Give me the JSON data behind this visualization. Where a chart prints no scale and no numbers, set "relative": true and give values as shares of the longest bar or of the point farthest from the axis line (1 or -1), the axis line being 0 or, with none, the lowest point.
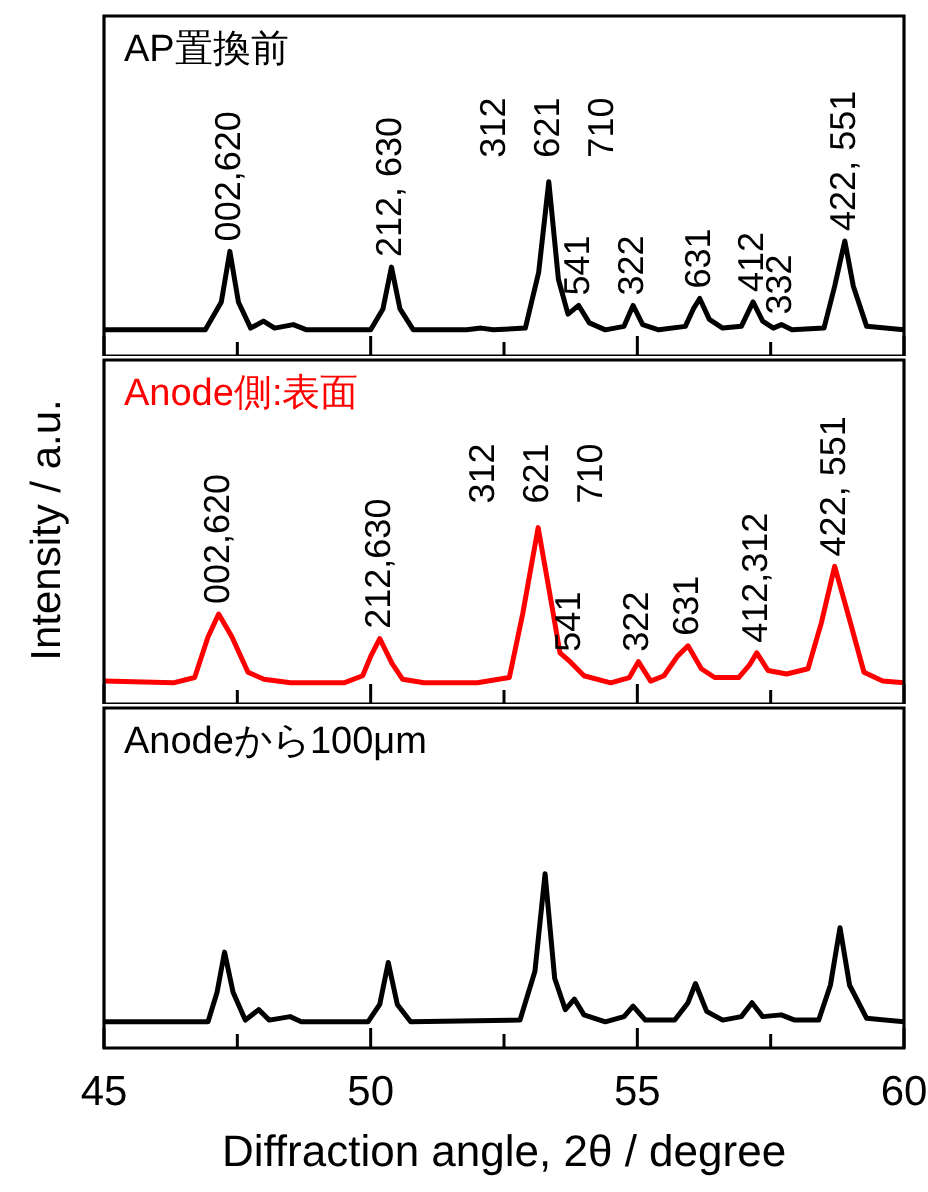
{
  "chart_data": [
    {
      "type": "line",
      "title": "AP置換前",
      "relative": true,
      "xlim": [
        45,
        60
      ],
      "xticks": [
        45,
        {
          "value": 47.5,
          "label": null
        },
        50,
        {
          "value": 52.5,
          "label": null
        },
        55,
        {
          "value": 57.5,
          "label": null
        },
        60
      ],
      "tick_labels": false,
      "legend": false,
      "series": [
        {
          "color": "#000000",
          "x": [
            45,
            46.9,
            47.2,
            47.36,
            47.52,
            47.75,
            47.99,
            48.2,
            48.55,
            48.8,
            50.0,
            50.23,
            50.39,
            50.55,
            50.8,
            51.8,
            52.07,
            52.3,
            52.9,
            53.15,
            53.34,
            53.52,
            53.7,
            53.9,
            54.1,
            54.4,
            54.75,
            54.92,
            55.1,
            55.4,
            55.9,
            56.05,
            56.17,
            56.35,
            56.6,
            56.95,
            57.17,
            57.35,
            57.55,
            57.7,
            57.9,
            58.5,
            58.7,
            58.89,
            59.05,
            59.3,
            60
          ],
          "values": [
            0.15,
            0.15,
            0.31,
            0.6,
            0.31,
            0.16,
            0.2,
            0.16,
            0.18,
            0.15,
            0.15,
            0.27,
            0.51,
            0.27,
            0.15,
            0.15,
            0.16,
            0.15,
            0.16,
            0.48,
            1,
            0.44,
            0.24,
            0.29,
            0.19,
            0.15,
            0.17,
            0.29,
            0.18,
            0.15,
            0.17,
            0.27,
            0.33,
            0.21,
            0.16,
            0.17,
            0.31,
            0.2,
            0.16,
            0.18,
            0.15,
            0.16,
            0.4,
            0.66,
            0.4,
            0.17,
            0.15
          ]
        }
      ],
      "annotations": [
        {
          "text": "002,620",
          "x": 47.36,
          "y": 0.6
        },
        {
          "text": "212, 630",
          "x": 50.39,
          "y": 0.51
        },
        {
          "text": "312",
          "x": 53.34,
          "y": 1
        },
        {
          "text": "621",
          "x": 53.34,
          "y": 1
        },
        {
          "text": "710",
          "x": 53.34,
          "y": 1
        },
        {
          "text": "541",
          "x": 53.9,
          "y": 0.29
        },
        {
          "text": "322",
          "x": 54.92,
          "y": 0.29
        },
        {
          "text": "631",
          "x": 56.17,
          "y": 0.33
        },
        {
          "text": "412",
          "x": 57.17,
          "y": 0.31
        },
        {
          "text": "332",
          "x": 57.7,
          "y": 0.18
        },
        {
          "text": "422, 551",
          "x": 58.89,
          "y": 0.66
        }
      ]
    },
    {
      "type": "line",
      "title": "Anode側:表面",
      "ylabel": "Intensity / a.u.",
      "relative": true,
      "xlim": [
        45,
        60
      ],
      "xticks": [
        45,
        {
          "value": 47.5,
          "label": null
        },
        50,
        {
          "value": 52.5,
          "label": null
        },
        55,
        {
          "value": 57.5,
          "label": null
        },
        60
      ],
      "tick_labels": false,
      "legend": false,
      "series": [
        {
          "color": "#ff0000",
          "x": [
            45,
            46.3,
            46.7,
            46.95,
            47.15,
            47.4,
            47.7,
            48.0,
            48.5,
            49.5,
            49.85,
            50.0,
            50.17,
            50.4,
            50.6,
            51.0,
            52.0,
            52.6,
            52.85,
            53.14,
            53.35,
            53.55,
            53.74,
            54.0,
            54.5,
            54.85,
            55.02,
            55.25,
            55.5,
            55.75,
            55.95,
            56.2,
            56.45,
            56.9,
            57.1,
            57.24,
            57.45,
            57.8,
            58.2,
            58.45,
            58.7,
            58.95,
            59.25,
            59.6,
            60
          ],
          "values": [
            0.13,
            0.12,
            0.15,
            0.38,
            0.51,
            0.38,
            0.18,
            0.14,
            0.12,
            0.12,
            0.16,
            0.27,
            0.37,
            0.23,
            0.14,
            0.12,
            0.12,
            0.15,
            0.51,
            1,
            0.64,
            0.29,
            0.24,
            0.16,
            0.12,
            0.15,
            0.24,
            0.13,
            0.16,
            0.27,
            0.33,
            0.2,
            0.15,
            0.15,
            0.22,
            0.29,
            0.19,
            0.17,
            0.2,
            0.46,
            0.78,
            0.51,
            0.18,
            0.13,
            0.12
          ]
        }
      ],
      "annotations": [
        {
          "text": "002,620",
          "x": 47.15,
          "y": 0.51
        },
        {
          "text": "212,630",
          "x": 50.17,
          "y": 0.37
        },
        {
          "text": "312",
          "x": 53.14,
          "y": 1
        },
        {
          "text": "621",
          "x": 53.14,
          "y": 1
        },
        {
          "text": "710",
          "x": 53.14,
          "y": 1
        },
        {
          "text": "541",
          "x": 53.74,
          "y": 0.24
        },
        {
          "text": "322",
          "x": 55.02,
          "y": 0.24
        },
        {
          "text": "631",
          "x": 55.95,
          "y": 0.33
        },
        {
          "text": "412,312",
          "x": 57.24,
          "y": 0.29
        },
        {
          "text": "422, 551",
          "x": 58.7,
          "y": 0.78
        }
      ]
    },
    {
      "type": "line",
      "title": "Anodeから100μm",
      "xlabel": "Diffraction angle, 2θ / degree",
      "relative": true,
      "xlim": [
        45,
        60
      ],
      "xticks": [
        45,
        {
          "value": 47.5,
          "label": null
        },
        50,
        {
          "value": 52.5,
          "label": null
        },
        55,
        {
          "value": 57.5,
          "label": null
        },
        60
      ],
      "tick_labels": "x",
      "legend": false,
      "series": [
        {
          "color": "#000000",
          "x": [
            45,
            46.95,
            47.12,
            47.26,
            47.42,
            47.65,
            47.9,
            48.1,
            48.49,
            48.7,
            49.95,
            50.17,
            50.33,
            50.5,
            50.75,
            52.8,
            53.08,
            53.27,
            53.45,
            53.65,
            53.82,
            54.0,
            54.4,
            54.75,
            54.92,
            55.15,
            55.7,
            55.95,
            56.09,
            56.3,
            56.6,
            56.95,
            57.15,
            57.35,
            57.7,
            57.95,
            58.4,
            58.62,
            58.8,
            58.98,
            59.3,
            60
          ],
          "values": [
            0.15,
            0.15,
            0.32,
            0.55,
            0.32,
            0.16,
            0.22,
            0.16,
            0.18,
            0.15,
            0.15,
            0.25,
            0.49,
            0.25,
            0.15,
            0.16,
            0.44,
            1,
            0.4,
            0.22,
            0.28,
            0.19,
            0.15,
            0.18,
            0.24,
            0.16,
            0.16,
            0.26,
            0.37,
            0.21,
            0.16,
            0.18,
            0.26,
            0.18,
            0.19,
            0.16,
            0.16,
            0.36,
            0.69,
            0.36,
            0.17,
            0.15
          ]
        }
      ]
    }
  ]
}
